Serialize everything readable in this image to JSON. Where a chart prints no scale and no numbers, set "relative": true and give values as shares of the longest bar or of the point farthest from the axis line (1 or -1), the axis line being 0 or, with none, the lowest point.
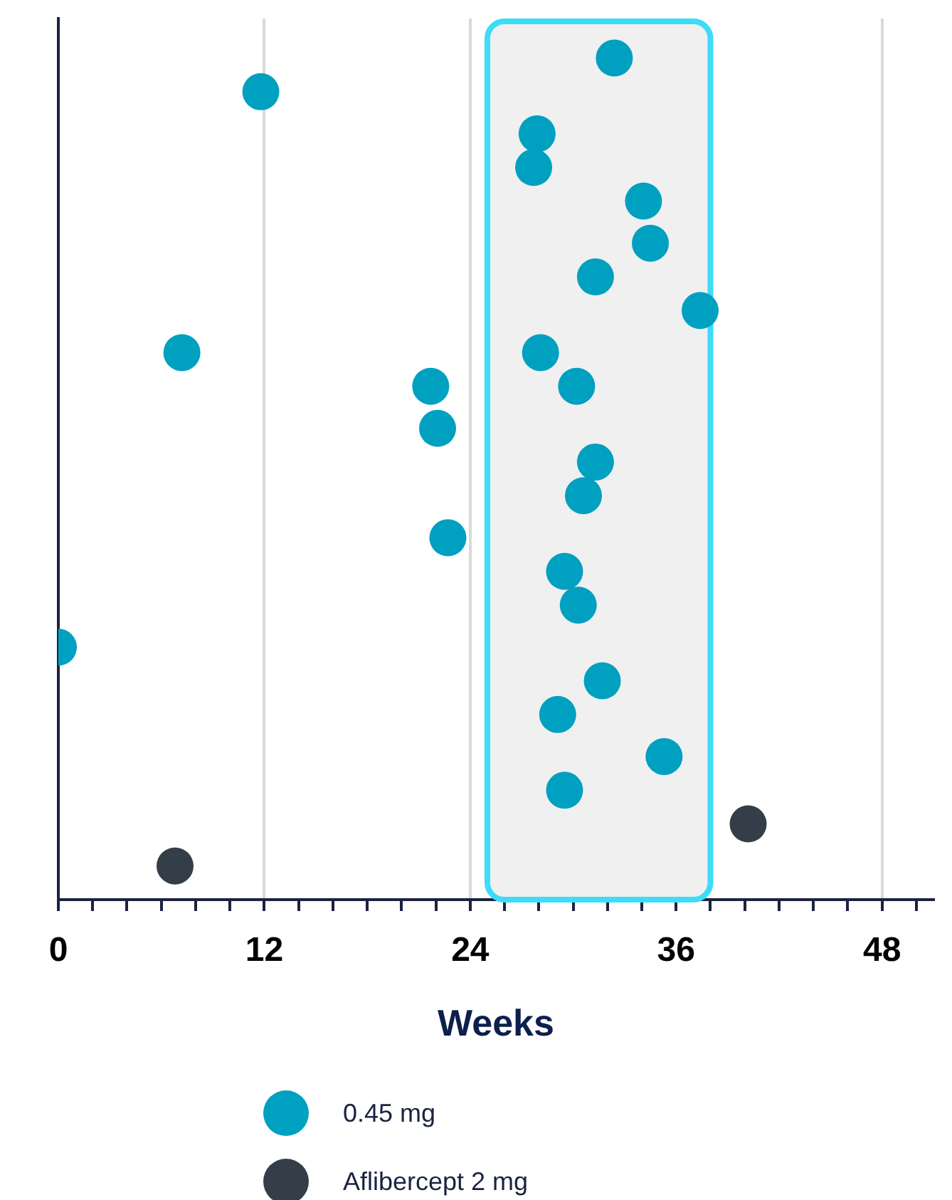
{
  "chart_data": {
    "type": "scatter",
    "xlabel": "Weeks",
    "relative": true,
    "xlim": [
      0,
      51
    ],
    "xticks": [
      0,
      {
        "value": 2,
        "label": null
      },
      {
        "value": 4,
        "label": null
      },
      {
        "value": 6,
        "label": null
      },
      {
        "value": 8,
        "label": null
      },
      {
        "value": 10,
        "label": null
      },
      12,
      {
        "value": 14,
        "label": null
      },
      {
        "value": 16,
        "label": null
      },
      {
        "value": 18,
        "label": null
      },
      {
        "value": 20,
        "label": null
      },
      {
        "value": 22,
        "label": null
      },
      24,
      {
        "value": 26,
        "label": null
      },
      {
        "value": 28,
        "label": null
      },
      {
        "value": 30,
        "label": null
      },
      {
        "value": 32,
        "label": null
      },
      {
        "value": 34,
        "label": null
      },
      36,
      {
        "value": 38,
        "label": null
      },
      {
        "value": 40,
        "label": null
      },
      {
        "value": 42,
        "label": null
      },
      {
        "value": 44,
        "label": null
      },
      {
        "value": 46,
        "label": null
      },
      48,
      {
        "value": 50,
        "label": null
      }
    ],
    "grid": "x",
    "legend": "bottom",
    "marker": "circle",
    "bands": [
      {
        "axis": "x",
        "from": 25,
        "to": 38,
        "color": "#f0f0f0"
      }
    ],
    "series": [
      {
        "name": "0.45 mg",
        "color": "#00a0c0",
        "x": [
          32.4,
          11.8,
          27.9,
          27.7,
          34.1,
          34.5,
          31.3,
          37.4,
          7.2,
          28.1,
          21.7,
          30.2,
          22.1,
          31.3,
          30.6,
          22.7,
          29.5,
          30.3,
          0,
          31.7,
          29.1,
          35.3,
          29.5
        ],
        "values": [
          1,
          0.96,
          0.91,
          0.87,
          0.83,
          0.78,
          0.74,
          0.7,
          0.65,
          0.65,
          0.61,
          0.61,
          0.56,
          0.52,
          0.48,
          0.43,
          0.39,
          0.35,
          0.3,
          0.26,
          0.22,
          0.17,
          0.13
        ]
      },
      {
        "name": "Aflibercept 2 mg",
        "color": "#333e48",
        "x": [
          40.2,
          6.8
        ],
        "values": [
          0.09,
          0.04
        ]
      }
    ]
  }
}
